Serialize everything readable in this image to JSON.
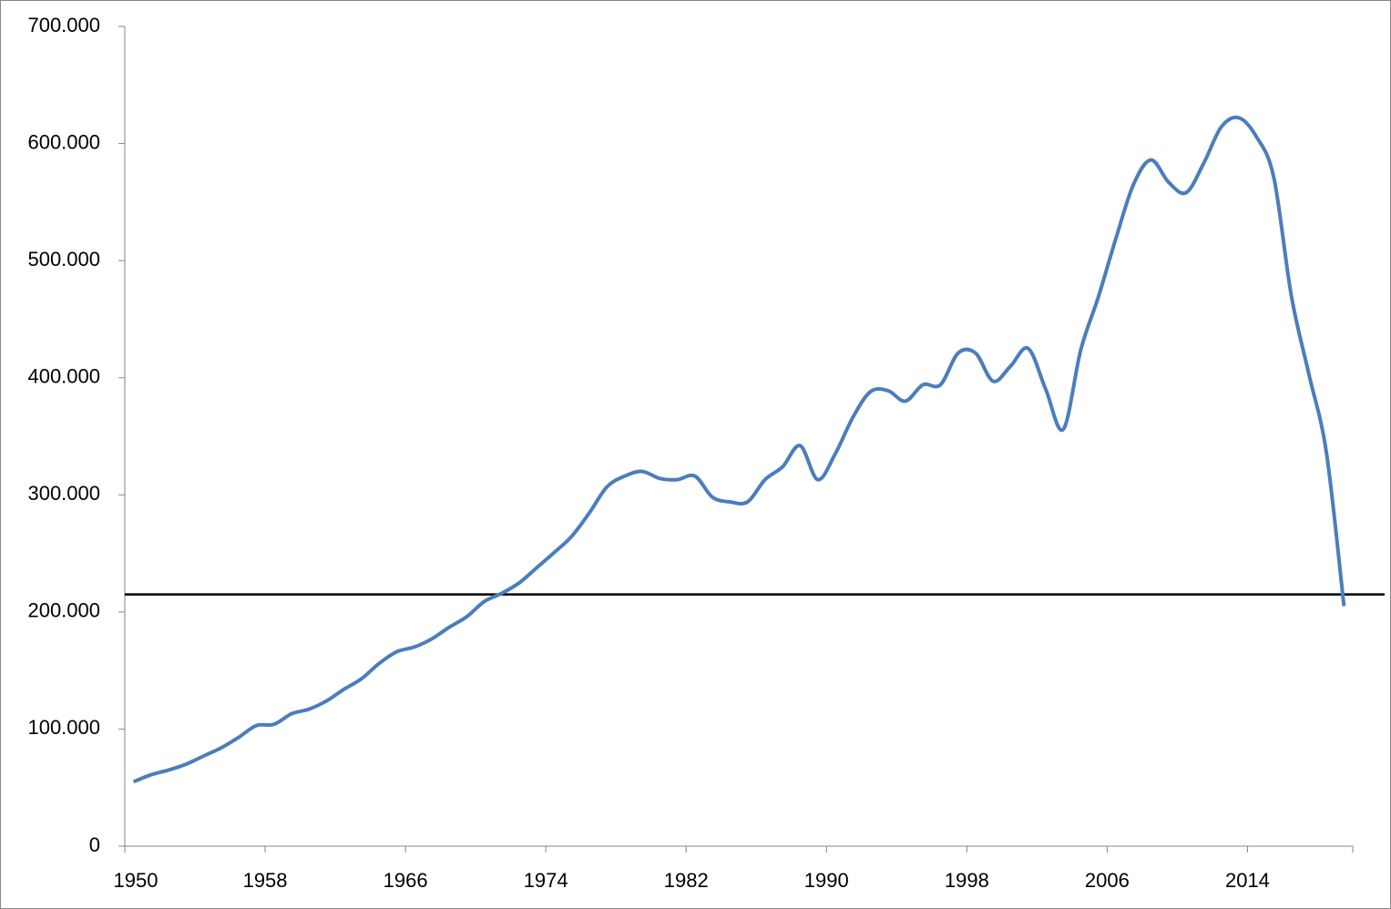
{
  "chart_data": {
    "type": "line",
    "categories": [
      "1950",
      null,
      null,
      null,
      null,
      null,
      null,
      null,
      "1958",
      null,
      null,
      null,
      null,
      null,
      null,
      null,
      "1966",
      null,
      null,
      null,
      null,
      null,
      null,
      null,
      "1974",
      null,
      null,
      null,
      null,
      null,
      null,
      null,
      "1982",
      null,
      null,
      null,
      null,
      null,
      null,
      null,
      "1990",
      null,
      null,
      null,
      null,
      null,
      null,
      null,
      "1998",
      null,
      null,
      null,
      null,
      null,
      null,
      null,
      "2006",
      null,
      null,
      null,
      null,
      null,
      null,
      null,
      "2014",
      null,
      null,
      null,
      null,
      null
    ],
    "series": [
      {
        "color": "#4a7ebb",
        "values": [
          55000,
          61000,
          65000,
          70000,
          77000,
          84000,
          93000,
          103000,
          104000,
          113000,
          117000,
          124000,
          134000,
          143000,
          156000,
          166000,
          170000,
          177000,
          187000,
          196000,
          209000,
          216000,
          225000,
          238000,
          251000,
          265000,
          285000,
          307000,
          316000,
          320000,
          314000,
          313000,
          316000,
          298000,
          294000,
          294000,
          313000,
          324000,
          342000,
          313000,
          335000,
          366000,
          388000,
          389000,
          380000,
          394000,
          394000,
          421000,
          421000,
          397000,
          410000,
          425000,
          390000,
          356000,
          424000,
          469000,
          519000,
          565000,
          586000,
          567000,
          558000,
          583000,
          614000,
          622000,
          606000,
          571000,
          470000,
          403000,
          336000,
          205000
        ]
      }
    ],
    "hline": 215000,
    "hline_color": "#000000",
    "ylim": [
      0,
      700000
    ],
    "yticks": [
      0,
      {
        "value": 100000,
        "label": "100.000"
      },
      {
        "value": 200000,
        "label": "200.000"
      },
      {
        "value": 300000,
        "label": "300.000"
      },
      {
        "value": 400000,
        "label": "400.000"
      },
      {
        "value": 500000,
        "label": "500.000"
      },
      {
        "value": 600000,
        "label": "600.000"
      },
      {
        "value": 700000,
        "label": "700.000"
      }
    ],
    "grid": false
  }
}
